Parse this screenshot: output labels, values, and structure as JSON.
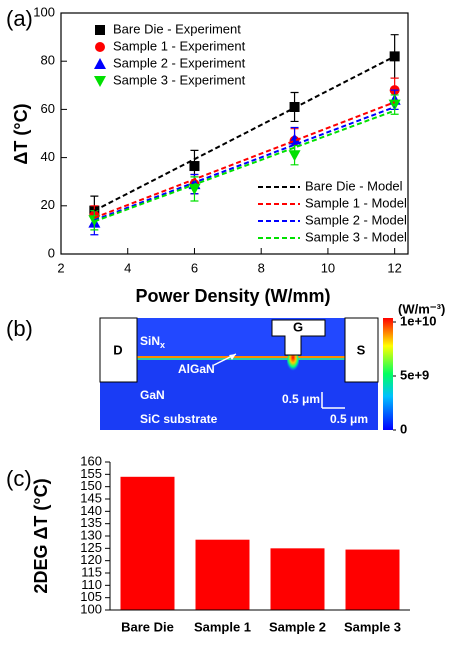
{
  "chart_data": [
    {
      "type": "scatter",
      "panel": "(a)",
      "x_label": "Power Density (W/mm)",
      "y_label": "ΔT (°C)",
      "xlim": [
        2,
        12.4
      ],
      "xticks": [
        2,
        4,
        6,
        8,
        10,
        12
      ],
      "ylim": [
        0,
        100
      ],
      "yticks": [
        0,
        20,
        40,
        60,
        80,
        100
      ],
      "series": [
        {
          "name": "Bare Die - Experiment",
          "kind": "scatter",
          "marker": "square",
          "legend": "upper left",
          "color": "#000000",
          "x": [
            3,
            6,
            9,
            12
          ],
          "values": [
            18,
            36.5,
            61,
            82
          ],
          "errors": [
            6,
            6.5,
            6,
            9
          ]
        },
        {
          "name": "Sample 1 - Experiment",
          "kind": "scatter",
          "marker": "circle",
          "legend": "upper left",
          "color": "#ff0000",
          "x": [
            3,
            6,
            9,
            12
          ],
          "values": [
            16,
            29,
            47,
            68
          ],
          "errors": [
            4,
            4,
            5,
            5
          ]
        },
        {
          "name": "Sample 2 - Experiment",
          "kind": "scatter",
          "marker": "triangle-up",
          "legend": "upper left",
          "color": "#0000ff",
          "x": [
            3,
            6,
            9,
            12
          ],
          "values": [
            13,
            29,
            47.5,
            64
          ],
          "errors": [
            5,
            4,
            5,
            4
          ]
        },
        {
          "name": "Sample 3 - Experiment",
          "kind": "scatter",
          "marker": "triangle-down",
          "legend": "upper left",
          "color": "#00e000",
          "x": [
            3,
            6,
            9,
            12
          ],
          "values": [
            14,
            27,
            41,
            62
          ],
          "errors": [
            4,
            5,
            4,
            4
          ]
        },
        {
          "name": "Bare Die - Model",
          "kind": "line",
          "dashed": true,
          "legend": "lower right",
          "color": "#000000",
          "x": [
            3,
            12
          ],
          "values": [
            18,
            82
          ]
        },
        {
          "name": "Sample 1 - Model",
          "kind": "line",
          "dashed": true,
          "legend": "lower right",
          "color": "#ff0000",
          "x": [
            3,
            12
          ],
          "values": [
            15,
            63
          ]
        },
        {
          "name": "Sample 2 - Model",
          "kind": "line",
          "dashed": true,
          "legend": "lower right",
          "color": "#0000ff",
          "x": [
            3,
            12
          ],
          "values": [
            14,
            61
          ]
        },
        {
          "name": "Sample 3 - Model",
          "kind": "line",
          "dashed": true,
          "legend": "lower right",
          "color": "#00e000",
          "x": [
            3,
            12
          ],
          "values": [
            13.5,
            59.5
          ]
        }
      ]
    },
    {
      "type": "bar",
      "panel": "(c)",
      "y_label": "2DEG ΔT (°C)",
      "color": "#ff0000",
      "categories": [
        "Bare Die",
        "Sample 1",
        "Sample 2",
        "Sample 3"
      ],
      "values": [
        154,
        128.5,
        125,
        124.5
      ],
      "ylim": [
        100,
        160
      ],
      "yticks": [
        100,
        105,
        110,
        115,
        120,
        125,
        130,
        135,
        140,
        145,
        150,
        155,
        160
      ]
    }
  ],
  "diagram": {
    "label": "(b)",
    "electrodes": [
      "D",
      "G",
      "S"
    ],
    "layers": {
      "passivation": {
        "base": "SiN",
        "sub": "x"
      },
      "barrier": "AlGaN",
      "channel": "GaN",
      "substrate": "SiC substrate"
    },
    "scale_bars": [
      "0.5 μm",
      "0.5 μm"
    ],
    "colorbar": {
      "unit": "(W/m⁻³)",
      "lim": [
        0,
        10000000000
      ],
      "ticks": [
        {
          "value": 10000000000,
          "label": "1e+10"
        },
        {
          "value": 5000000000,
          "label": "5e+9"
        },
        0
      ]
    }
  }
}
